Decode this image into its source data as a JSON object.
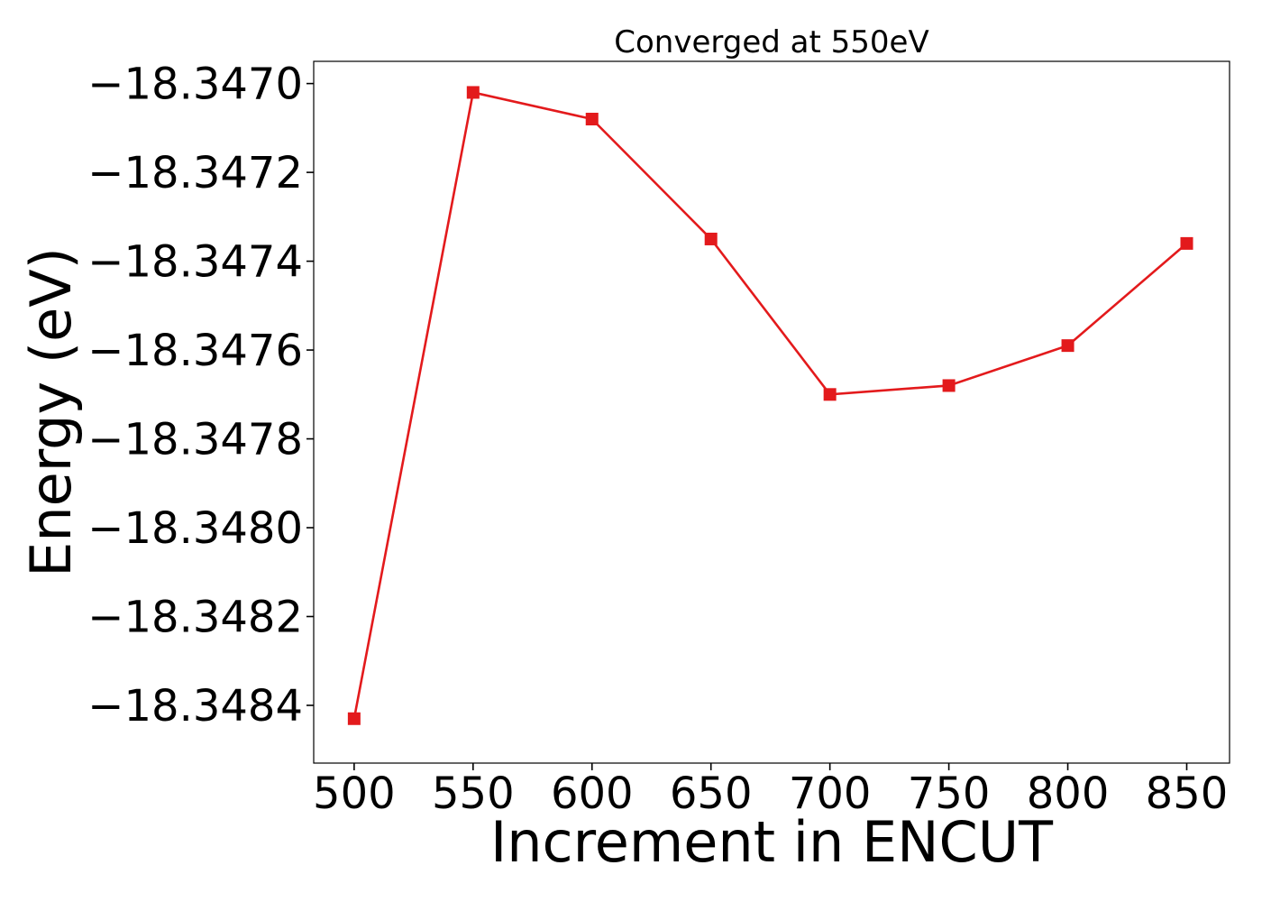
{
  "chart_data": {
    "type": "line",
    "title": "Converged at 550eV",
    "xlabel": "Increment in ENCUT",
    "ylabel": "Energy (eV)",
    "x": [
      500,
      550,
      600,
      650,
      700,
      750,
      800,
      850
    ],
    "series": [
      {
        "values": [
          -18.34843,
          -18.34702,
          -18.34708,
          -18.34735,
          -18.3477,
          -18.34768,
          -18.34759,
          -18.34736
        ],
        "color": "#e31a1c",
        "marker": "square"
      }
    ],
    "xlim": [
      483,
      868
    ],
    "ylim": [
      -18.34853,
      -18.34695
    ],
    "xticks": [
      500,
      550,
      600,
      650,
      700,
      750,
      800,
      850
    ],
    "xtick_labels": [
      "500",
      "550",
      "600",
      "650",
      "700",
      "750",
      "800",
      "850"
    ],
    "yticks": [
      -18.347,
      -18.3472,
      -18.3474,
      -18.3476,
      -18.3478,
      -18.348,
      -18.3482,
      -18.3484
    ],
    "ytick_labels": [
      "−18.3470",
      "−18.3472",
      "−18.3474",
      "−18.3476",
      "−18.3478",
      "−18.3480",
      "−18.3482",
      "−18.3484"
    ],
    "grid": false,
    "legend": "none"
  }
}
